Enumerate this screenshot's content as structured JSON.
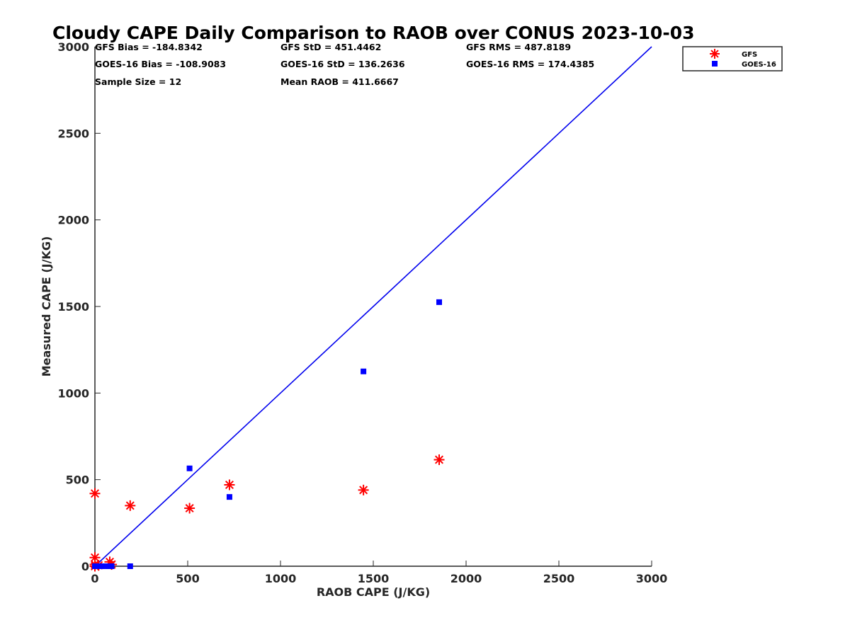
{
  "chart_data": {
    "type": "scatter",
    "title": "Cloudy CAPE Daily Comparison to RAOB over CONUS 2023-10-03",
    "xlabel": "RAOB CAPE (J/KG)",
    "ylabel": "Measured CAPE (J/KG)",
    "xlim": [
      0,
      3000
    ],
    "ylim": [
      0,
      3000
    ],
    "xticks": [
      "0",
      "500",
      "1000",
      "1500",
      "2000",
      "2500",
      "3000"
    ],
    "yticks": [
      "0",
      "500",
      "1000",
      "1500",
      "2000",
      "2500",
      "3000"
    ],
    "grid": false,
    "legend_position": "top-right",
    "stats": [
      [
        "GFS Bias = -184.8342",
        "GFS StD = 451.4462",
        "GFS RMS = 487.8189"
      ],
      [
        "GOES-16 Bias = -108.9083",
        "GOES-16 StD = 136.2636",
        "GOES-16 RMS = 174.4385"
      ],
      [
        "Sample Size = 12",
        "Mean RAOB = 411.6667",
        ""
      ]
    ],
    "reference_line": {
      "x": [
        0,
        3000
      ],
      "y": [
        0,
        3000
      ],
      "color": "#0000ee"
    },
    "series": [
      {
        "name": "GFS",
        "marker": "asterisk",
        "color": "#ff0000",
        "x": [
          0,
          0,
          0,
          20,
          80,
          90,
          190,
          510,
          725,
          1447,
          1855,
          0
        ],
        "y": [
          0,
          50,
          420,
          5,
          25,
          10,
          350,
          335,
          470,
          440,
          615,
          10
        ]
      },
      {
        "name": "GOES-16",
        "marker": "square",
        "color": "#0000ff",
        "x": [
          0,
          10,
          20,
          40,
          70,
          90,
          190,
          510,
          725,
          1447,
          1855,
          0
        ],
        "y": [
          0,
          0,
          0,
          0,
          0,
          0,
          0,
          565,
          400,
          1125,
          1525,
          0
        ]
      }
    ]
  }
}
